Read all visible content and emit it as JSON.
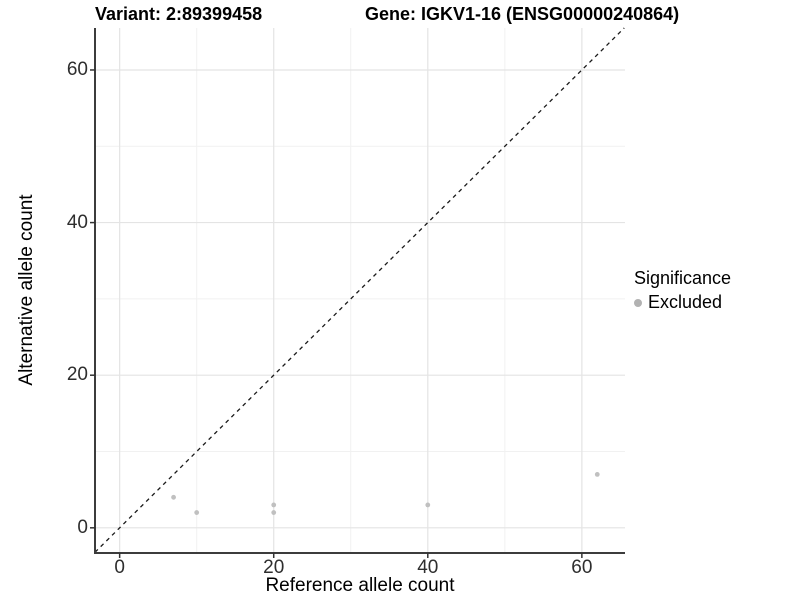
{
  "titles": {
    "variant": "Variant: 2:89399458",
    "gene": "Gene: IGKV1-16 (ENSG00000240864)"
  },
  "chart_data": {
    "type": "scatter",
    "xlabel": "Reference allele count",
    "ylabel": "Alternative allele count",
    "xlim": [
      -3.2,
      65.6
    ],
    "ylim": [
      -3.3,
      65.5
    ],
    "xticks": [
      0,
      20,
      40,
      60
    ],
    "yticks": [
      0,
      20,
      40,
      60
    ],
    "minor_xticks": [
      10,
      30,
      50
    ],
    "minor_yticks": [
      10,
      30,
      50
    ],
    "grid": true,
    "legend_position": "right",
    "series": [
      {
        "name": "Excluded",
        "points": [
          {
            "x": 7,
            "y": 4
          },
          {
            "x": 10,
            "y": 2
          },
          {
            "x": 20,
            "y": 2
          },
          {
            "x": 20,
            "y": 3
          },
          {
            "x": 40,
            "y": 3
          },
          {
            "x": 62,
            "y": 7
          }
        ]
      }
    ],
    "identity_line": {
      "slope": 1,
      "intercept": 0,
      "style": "dashed"
    }
  },
  "legend": {
    "title": "Significance",
    "items": [
      {
        "label": "Excluded",
        "color": "#b2b2b2"
      }
    ]
  },
  "colors": {
    "point": "#c0c0c0",
    "grid_major": "#e4e4e4",
    "grid_minor": "#f1f1f1",
    "axis_line": "#3c3c3c",
    "dashed_line": "#1a1a1a",
    "tick_mark": "#333333"
  }
}
